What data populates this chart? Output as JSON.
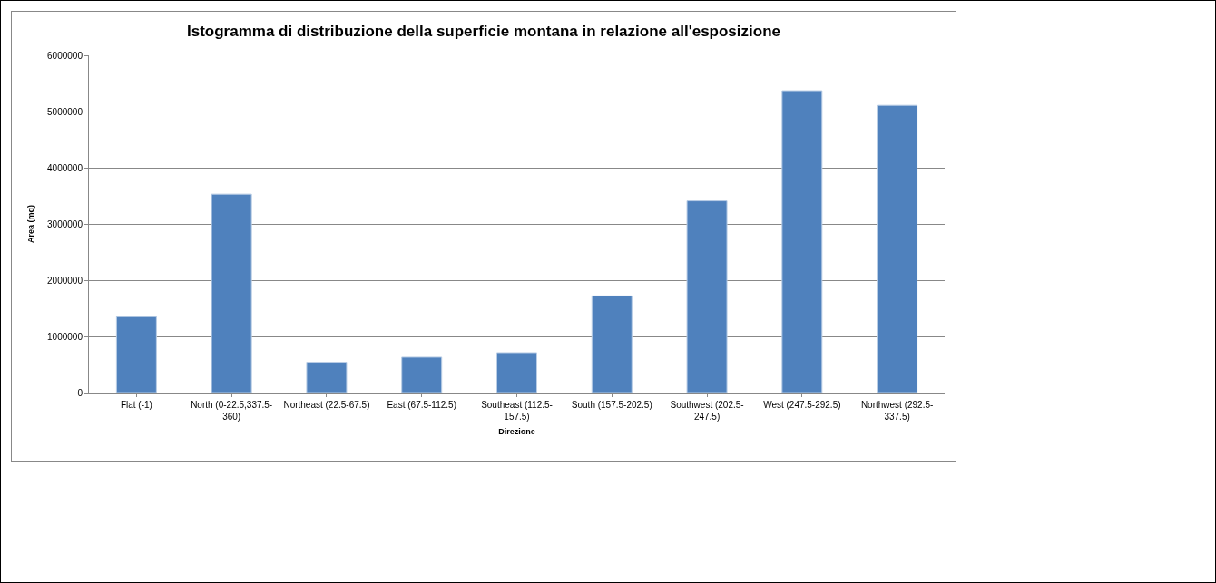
{
  "chart_data": {
    "type": "bar",
    "title": "Istogramma di distribuzione della superficie montana in relazione all'esposizione",
    "xlabel": "Direzione",
    "ylabel": "Area (mq)",
    "categories": [
      "Flat (-1)",
      "North (0-22.5,337.5-360)",
      "Northeast (22.5-67.5)",
      "East (67.5-112.5)",
      "Southeast (112.5-157.5)",
      "South (157.5-202.5)",
      "Southwest (202.5-247.5)",
      "West (247.5-292.5)",
      "Northwest (292.5-337.5)"
    ],
    "values": [
      1350000,
      3530000,
      540000,
      630000,
      710000,
      1720000,
      3410000,
      5370000,
      5110000
    ],
    "color": "#4f81bd",
    "ylim": [
      0,
      6000000
    ],
    "yticks": [
      0,
      1000000,
      2000000,
      3000000,
      4000000,
      5000000,
      6000000
    ],
    "grid": "y"
  }
}
